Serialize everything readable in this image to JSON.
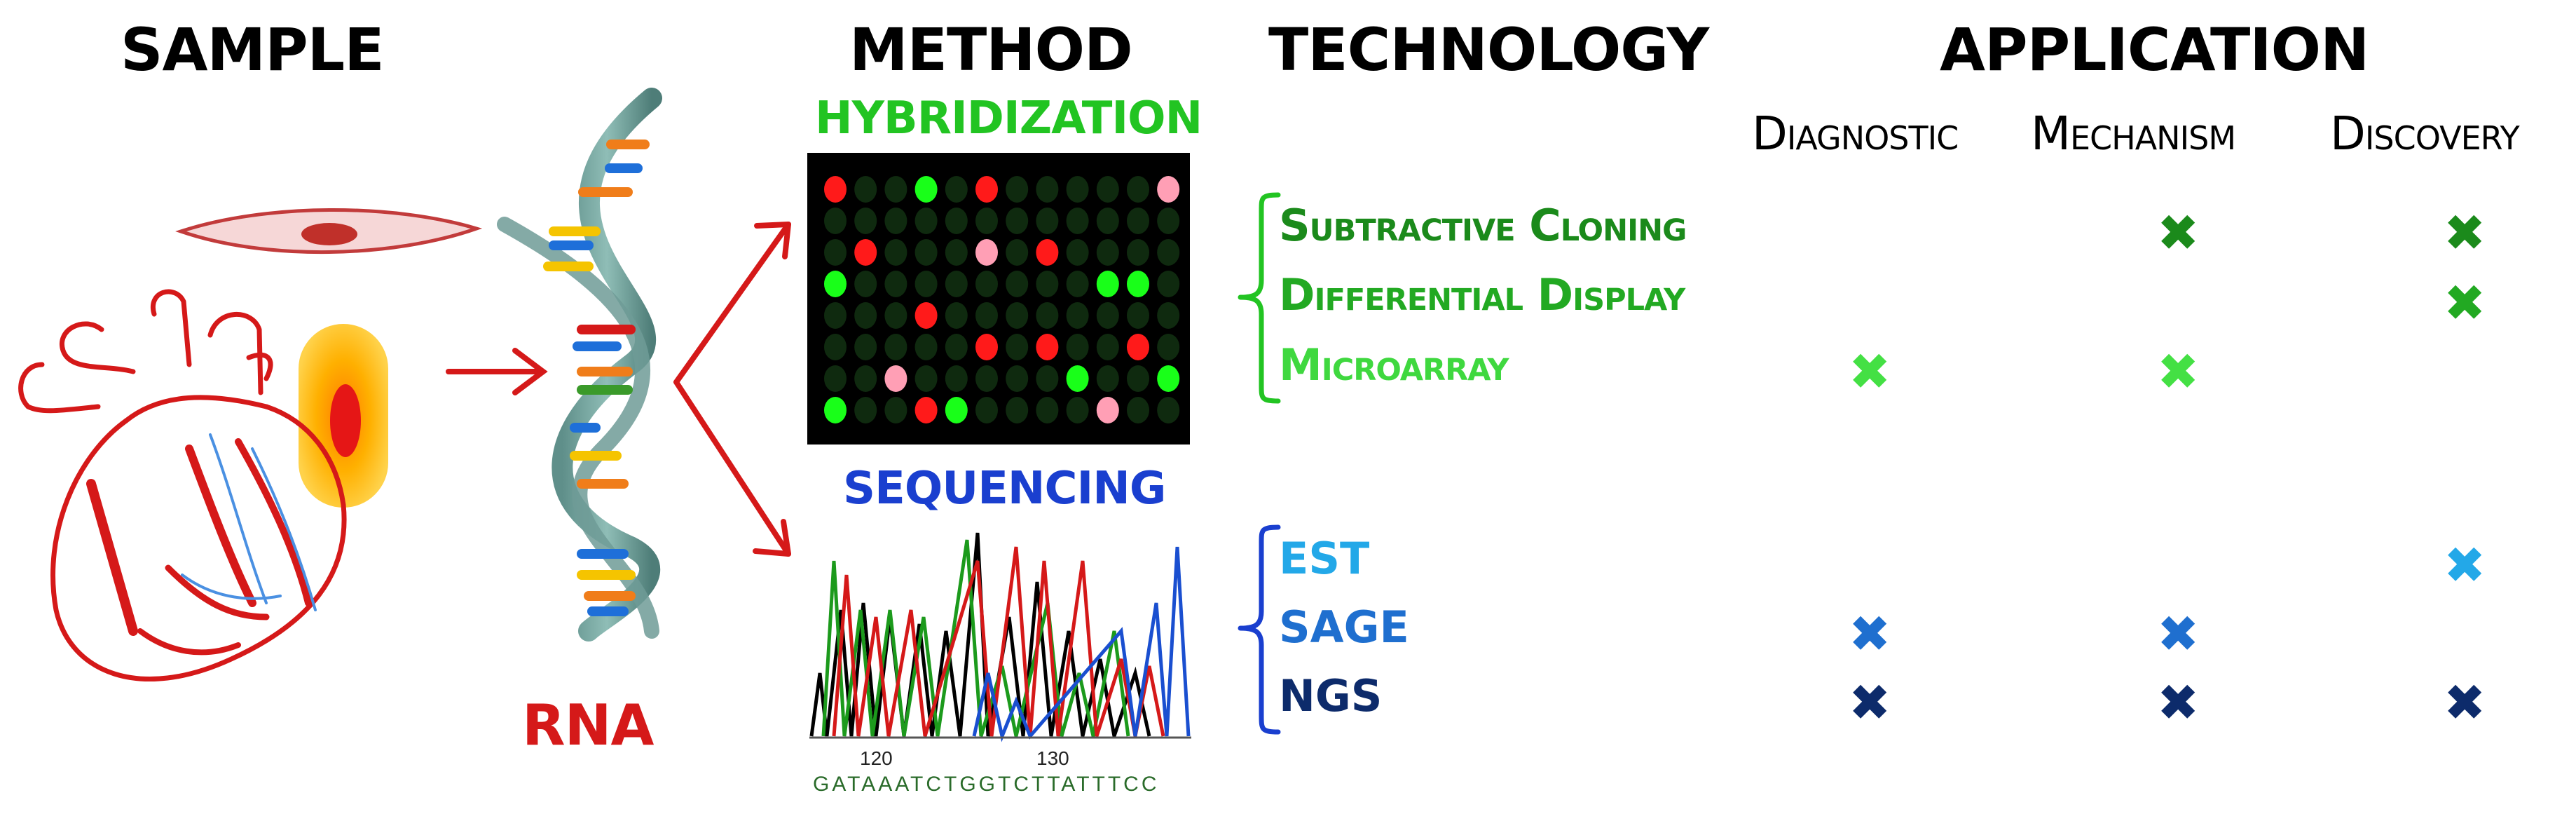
{
  "headers": {
    "sample": "SAMPLE",
    "method": "METHOD",
    "technology": "TECHNOLOGY",
    "application": "APPLICATION"
  },
  "application_columns": [
    "Diagnostic",
    "Mechanism",
    "Discovery"
  ],
  "method": {
    "hybridization": "HYBRIDIZATION",
    "sequencing": "SEQUENCING"
  },
  "rna_label": "RNA",
  "chromatogram": {
    "tick1": "120",
    "tick2": "130",
    "sequence": "GATAAATCTGGTCTTATTTCC"
  },
  "technologies": {
    "hybridization": [
      "Subtractive Cloning",
      "Differential Display",
      "Microarray"
    ],
    "sequencing": [
      "EST",
      "SAGE",
      "NGS"
    ]
  },
  "marks": {
    "glyph": "✖",
    "subtractive_cloning": {
      "diagnostic": false,
      "mechanism": true,
      "discovery": true
    },
    "differential_display": {
      "diagnostic": false,
      "mechanism": false,
      "discovery": true
    },
    "microarray": {
      "diagnostic": true,
      "mechanism": true,
      "discovery": false
    },
    "est": {
      "diagnostic": false,
      "mechanism": false,
      "discovery": true
    },
    "sage": {
      "diagnostic": true,
      "mechanism": true,
      "discovery": false
    },
    "ngs": {
      "diagnostic": true,
      "mechanism": true,
      "discovery": true
    }
  },
  "colors": {
    "dark_green": "#1b8a1b",
    "mid_green": "#22a922",
    "light_green": "#44e044",
    "est_blue": "#23a8e8",
    "sage_blue": "#1f6fcf",
    "ngs_navy": "#0d2b6b",
    "sequencing_blue": "#1a3fcf",
    "red": "#d51919"
  }
}
